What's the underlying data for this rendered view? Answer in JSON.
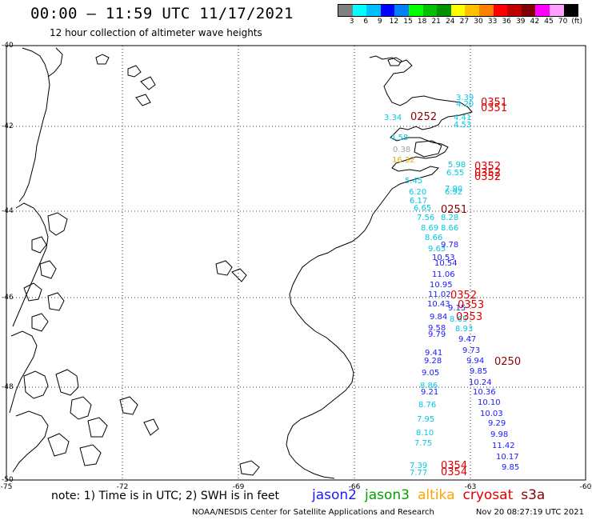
{
  "header": {
    "title": "00:00 – 11:59 UTC 11/17/2021",
    "subtitle": "12 hour collection of altimeter wave heights"
  },
  "colorbar": {
    "colors": [
      "#808080",
      "#00ffff",
      "#00c0ff",
      "#0000ff",
      "#0080ff",
      "#00ff00",
      "#00c000",
      "#009000",
      "#ffff00",
      "#ffc000",
      "#ff8000",
      "#ff0000",
      "#c00000",
      "#800000",
      "#ff00ff",
      "#ffa0ff",
      "#000000"
    ],
    "labels": [
      "3",
      "6",
      "9",
      "12",
      "15",
      "18",
      "21",
      "24",
      "27",
      "30",
      "33",
      "36",
      "39",
      "42",
      "45",
      "70",
      "(ft)"
    ]
  },
  "map": {
    "lat_ticks": [
      "-40",
      "-42",
      "-44",
      "-46",
      "-48",
      "-50"
    ],
    "lon_ticks": [
      "-75",
      "-72",
      "-69",
      "-66",
      "-63",
      "-60"
    ],
    "wave_heights": [
      {
        "text": "3.34",
        "color": "#00c8e6"
      },
      {
        "text": "4.58",
        "color": "#00c8e6"
      },
      {
        "text": "0.38",
        "color": "#a0a0a0"
      },
      {
        "text": "16.32",
        "color": "#e0b000"
      },
      {
        "text": "3.39",
        "color": "#00c8e6"
      },
      {
        "text": "4.20",
        "color": "#00c8e6"
      },
      {
        "text": "4.41",
        "color": "#00c8e6"
      },
      {
        "text": "4.53",
        "color": "#00c8e6"
      },
      {
        "text": "5.98",
        "color": "#00c8e6"
      },
      {
        "text": "6.55",
        "color": "#00c8e6"
      },
      {
        "text": "5.45",
        "color": "#00c8e6"
      },
      {
        "text": "6.20",
        "color": "#00c8e6"
      },
      {
        "text": "7.90",
        "color": "#00c8e6"
      },
      {
        "text": "6.92",
        "color": "#00c8e6"
      },
      {
        "text": "6.17",
        "color": "#00c8e6"
      },
      {
        "text": "6.65",
        "color": "#00c8e6"
      },
      {
        "text": "7.56",
        "color": "#00c8e6"
      },
      {
        "text": "8.28",
        "color": "#00c8e6"
      },
      {
        "text": "8.69",
        "color": "#00c8e6"
      },
      {
        "text": "8.66",
        "color": "#00c8e6"
      },
      {
        "text": "8.66",
        "color": "#00c8e6"
      },
      {
        "text": "9.63",
        "color": "#00c8e6"
      },
      {
        "text": "9.78",
        "color": "#1a1aff"
      },
      {
        "text": "10.53",
        "color": "#1a1aff"
      },
      {
        "text": "10.54",
        "color": "#1a1aff"
      },
      {
        "text": "11.06",
        "color": "#1a1aff"
      },
      {
        "text": "10.95",
        "color": "#1a1aff"
      },
      {
        "text": "11.02",
        "color": "#1a1aff"
      },
      {
        "text": "10.43",
        "color": "#1a1aff"
      },
      {
        "text": "9.15",
        "color": "#1a1aff"
      },
      {
        "text": "9.84",
        "color": "#1a1aff"
      },
      {
        "text": "8.65",
        "color": "#00c8e6"
      },
      {
        "text": "9.58",
        "color": "#1a1aff"
      },
      {
        "text": "9.79",
        "color": "#1a1aff"
      },
      {
        "text": "8.93",
        "color": "#00c8e6"
      },
      {
        "text": "9.47",
        "color": "#1a1aff"
      },
      {
        "text": "9.73",
        "color": "#1a1aff"
      },
      {
        "text": "9.41",
        "color": "#1a1aff"
      },
      {
        "text": "9.28",
        "color": "#1a1aff"
      },
      {
        "text": "9.94",
        "color": "#1a1aff"
      },
      {
        "text": "9.05",
        "color": "#1a1aff"
      },
      {
        "text": "9.85",
        "color": "#1a1aff"
      },
      {
        "text": "8.86",
        "color": "#00c8e6"
      },
      {
        "text": "9.21",
        "color": "#1a1aff"
      },
      {
        "text": "10.24",
        "color": "#1a1aff"
      },
      {
        "text": "10.36",
        "color": "#1a1aff"
      },
      {
        "text": "8.76",
        "color": "#00c8e6"
      },
      {
        "text": "10.10",
        "color": "#1a1aff"
      },
      {
        "text": "10.03",
        "color": "#1a1aff"
      },
      {
        "text": "7.95",
        "color": "#00c8e6"
      },
      {
        "text": "9.29",
        "color": "#1a1aff"
      },
      {
        "text": "8.10",
        "color": "#00c8e6"
      },
      {
        "text": "7.75",
        "color": "#00c8e6"
      },
      {
        "text": "9.98",
        "color": "#1a1aff"
      },
      {
        "text": "11.42",
        "color": "#1a1aff"
      },
      {
        "text": "10.17",
        "color": "#1a1aff"
      },
      {
        "text": "7.39",
        "color": "#00c8e6"
      },
      {
        "text": "7.77",
        "color": "#00c8e6"
      },
      {
        "text": "9.85",
        "color": "#1a1aff"
      }
    ],
    "time_labels": [
      {
        "text": "0252",
        "color": "#8b0000"
      },
      {
        "text": "0351",
        "color": "#e00000"
      },
      {
        "text": "0351",
        "color": "#e00000"
      },
      {
        "text": "0352",
        "color": "#e00000"
      },
      {
        "text": "0352",
        "color": "#e00000"
      },
      {
        "text": "0352",
        "color": "#e00000"
      },
      {
        "text": "0251",
        "color": "#8b0000"
      },
      {
        "text": "0352",
        "color": "#e00000"
      },
      {
        "text": "0353",
        "color": "#e00000"
      },
      {
        "text": "0353",
        "color": "#e00000"
      },
      {
        "text": "0250",
        "color": "#8b0000"
      },
      {
        "text": "0354",
        "color": "#e00000"
      },
      {
        "text": "0354",
        "color": "#e00000"
      }
    ]
  },
  "note": "note: 1) Time is in UTC; 2) SWH is in feet",
  "legend": [
    {
      "label": "jason2",
      "color": "#1a1aff"
    },
    {
      "label": "jason3",
      "color": "#00a000"
    },
    {
      "label": "altika",
      "color": "#ffa500"
    },
    {
      "label": "cryosat",
      "color": "#e00000"
    },
    {
      "label": "s3a",
      "color": "#8b0000"
    }
  ],
  "footer": {
    "credit": "NOAA/NESDIS Center for Satellite Applications and Research",
    "timestamp": "Nov 20 08:27:19 UTC 2021"
  }
}
